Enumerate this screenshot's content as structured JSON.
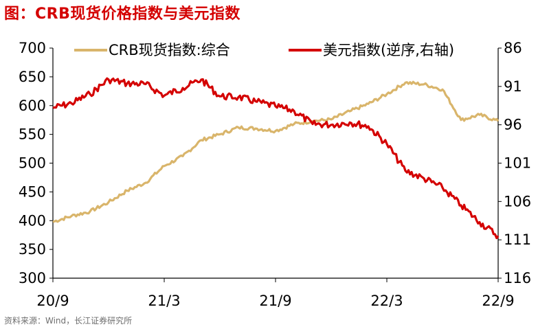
{
  "title": "图：CRB现货价格指数与美元指数",
  "source": "资料来源：Wind，长江证券研究所",
  "chart_data": {
    "type": "line",
    "x_ticks": [
      "20/9",
      "21/3",
      "21/9",
      "22/3",
      "22/9"
    ],
    "left_axis": {
      "ticks": [
        300,
        350,
        400,
        450,
        500,
        550,
        600,
        650,
        700
      ],
      "ylim": [
        300,
        700
      ]
    },
    "right_axis": {
      "ticks": [
        86,
        91,
        96,
        101,
        106,
        111,
        116
      ],
      "ylim": [
        86,
        116
      ],
      "inverted": true
    },
    "legend_position": "top",
    "series": [
      {
        "name": "CRB现货指数:综合",
        "axis": "left",
        "color": "#D9B56B",
        "x": [
          "2020-09",
          "2020-10",
          "2020-11",
          "2020-12",
          "2021-01",
          "2021-02",
          "2021-03",
          "2021-04",
          "2021-05",
          "2021-06",
          "2021-07",
          "2021-08",
          "2021-09",
          "2021-10",
          "2021-11",
          "2021-12",
          "2022-01",
          "2022-02",
          "2022-03",
          "2022-04",
          "2022-05",
          "2022-06",
          "2022-07",
          "2022-08",
          "2022-09"
        ],
        "values": [
          398,
          408,
          416,
          432,
          452,
          466,
          495,
          512,
          540,
          550,
          562,
          560,
          556,
          568,
          573,
          576,
          590,
          603,
          620,
          640,
          637,
          628,
          575,
          584,
          573
        ]
      },
      {
        "name": "美元指数(逆序,右轴)",
        "axis": "right",
        "color": "#D40000",
        "x": [
          "2020-09",
          "2020-10",
          "2020-11",
          "2020-12",
          "2021-01",
          "2021-02",
          "2021-03",
          "2021-04",
          "2021-05",
          "2021-06",
          "2021-07",
          "2021-08",
          "2021-09",
          "2021-10",
          "2021-11",
          "2021-12",
          "2022-01",
          "2022-02",
          "2022-03",
          "2022-04",
          "2022-05",
          "2022-06",
          "2022-07",
          "2022-08",
          "2022-09"
        ],
        "values": [
          93.8,
          93.2,
          92.0,
          90.1,
          90.6,
          90.7,
          92.2,
          91.2,
          90.1,
          92.3,
          92.4,
          93.0,
          93.6,
          94.2,
          95.9,
          96.0,
          95.7,
          96.2,
          98.5,
          102.0,
          103.0,
          104.2,
          106.5,
          108.7,
          110.5
        ]
      }
    ]
  }
}
